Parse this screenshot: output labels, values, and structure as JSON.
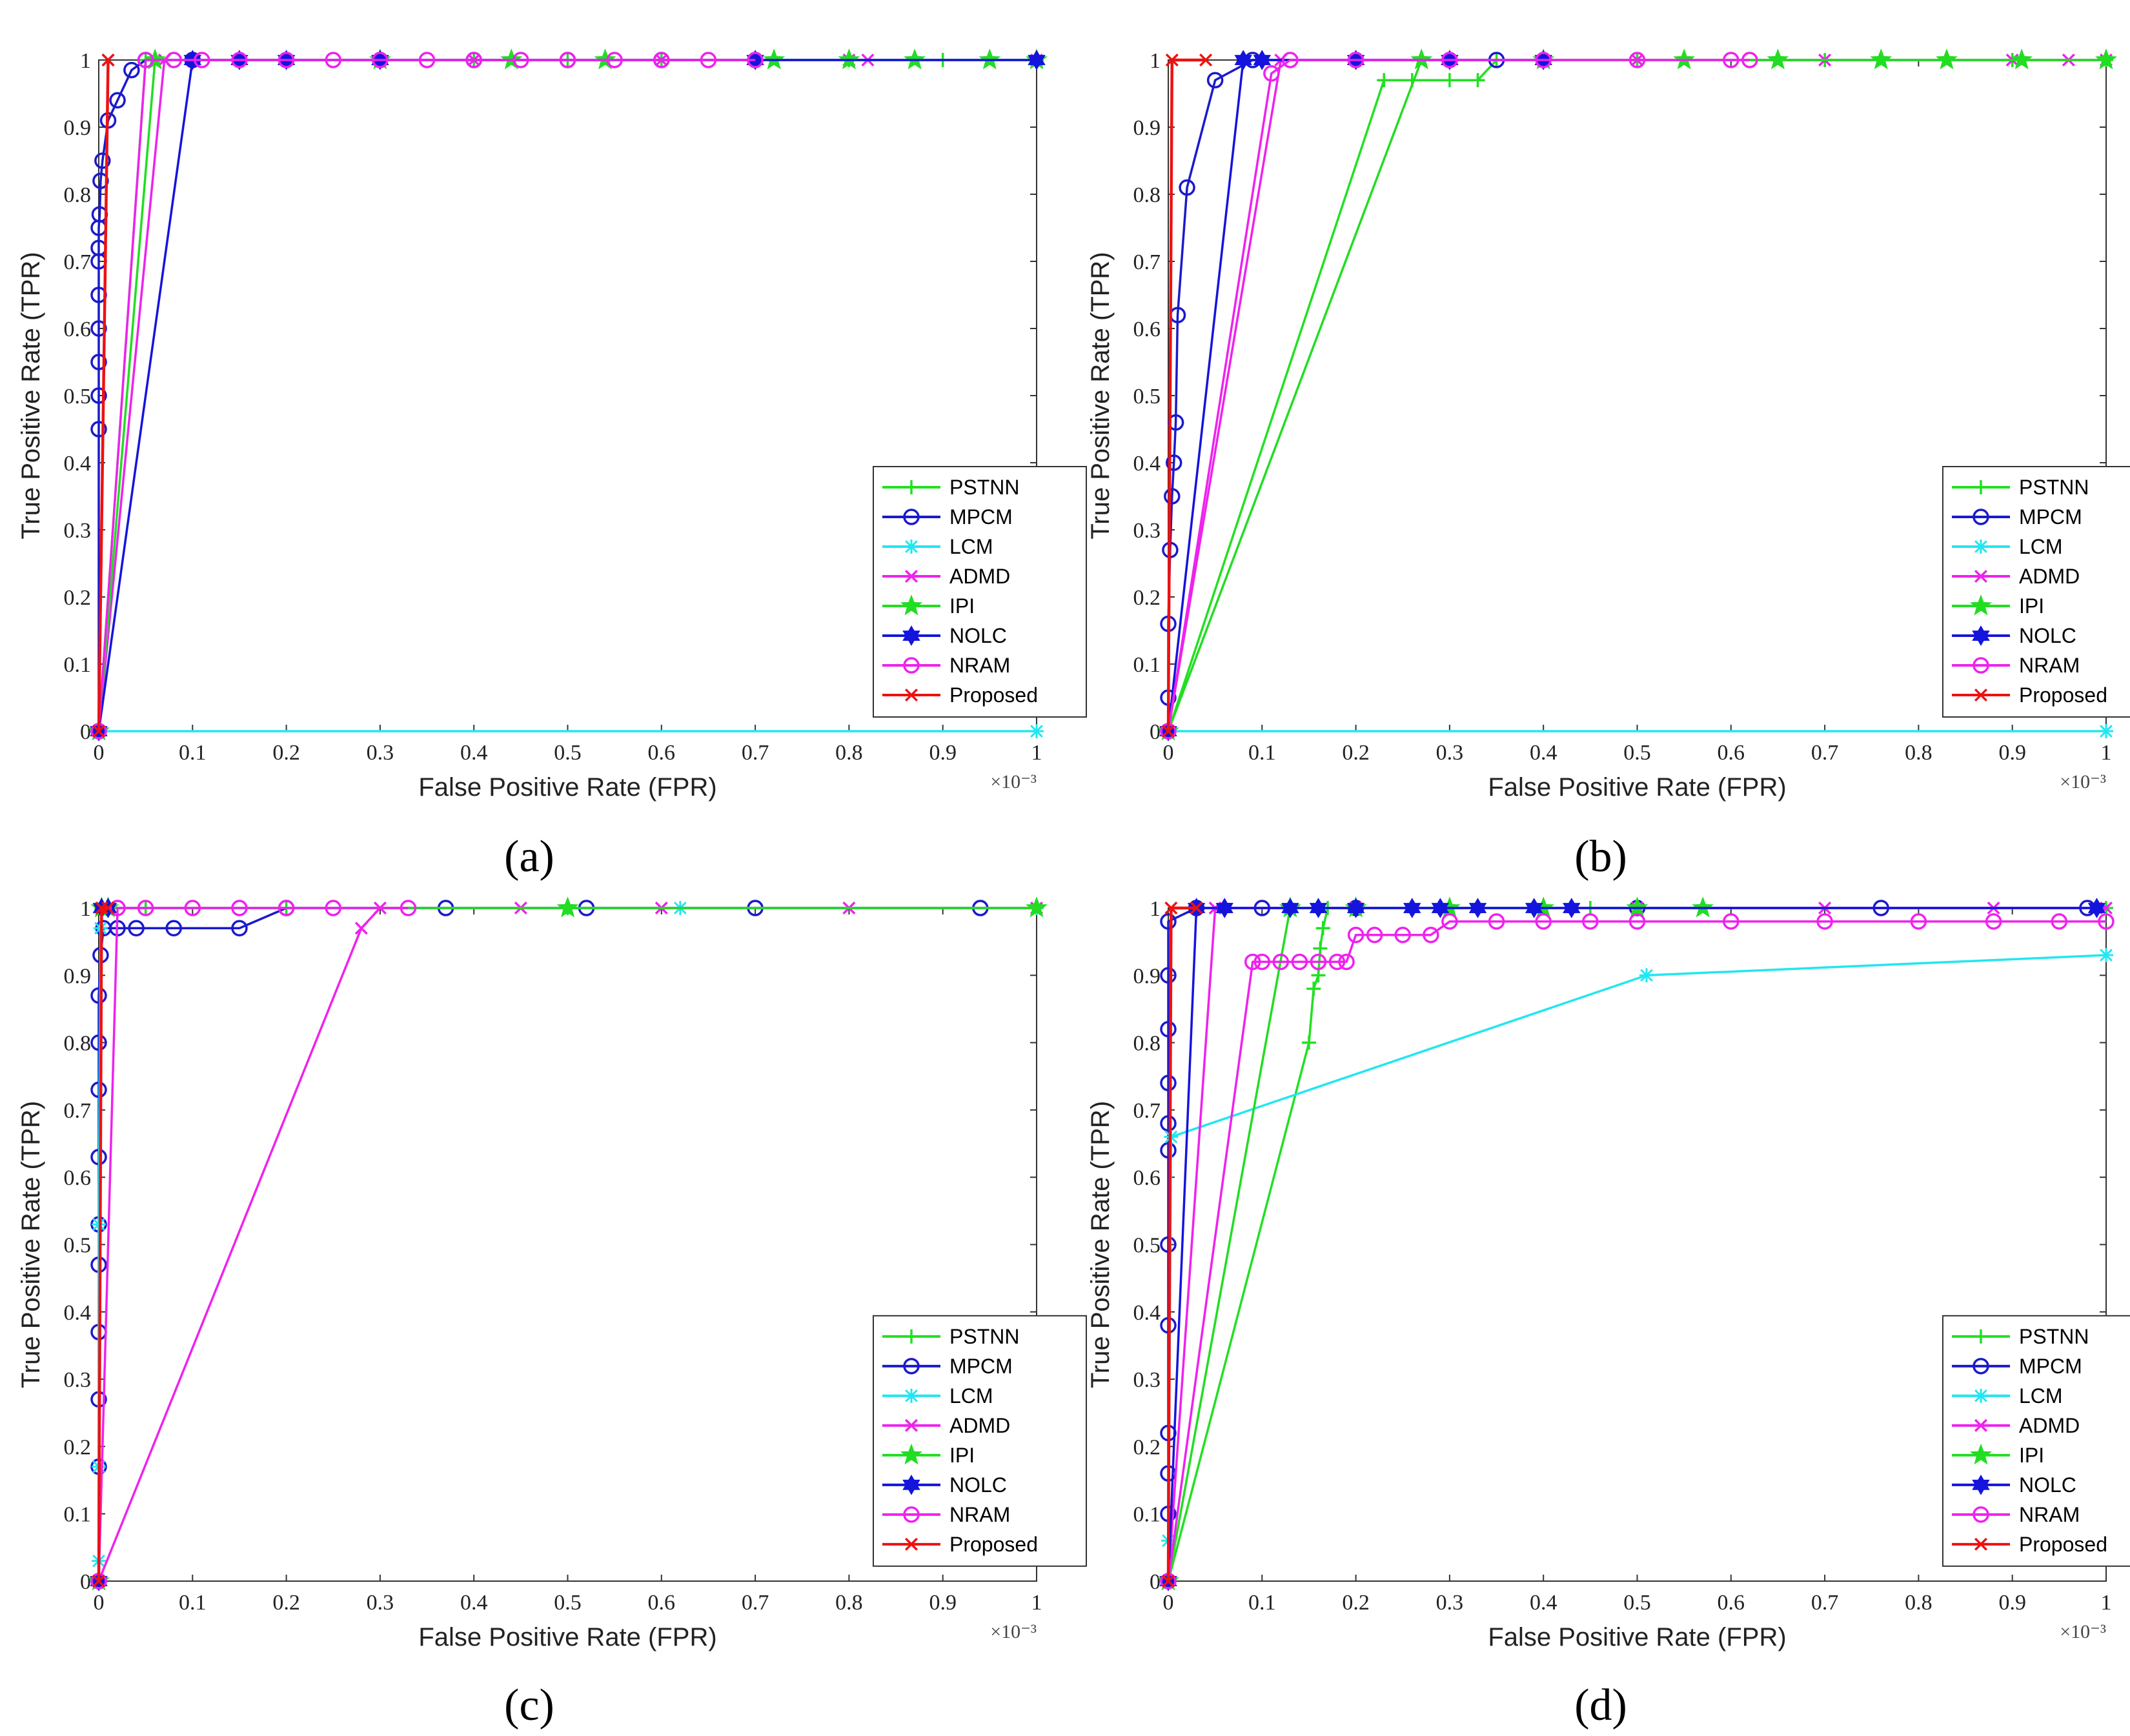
{
  "legend": [
    {
      "name": "PSTNN",
      "color": "#22e022",
      "marker": "plus"
    },
    {
      "name": "MPCM",
      "color": "#1a1acc",
      "marker": "circle"
    },
    {
      "name": "LCM",
      "color": "#22e6f0",
      "marker": "asterisk"
    },
    {
      "name": "ADMD",
      "color": "#ee22ee",
      "marker": "x"
    },
    {
      "name": "IPI",
      "color": "#22dd22",
      "marker": "star"
    },
    {
      "name": "NOLC",
      "color": "#1414dd",
      "marker": "hexagram"
    },
    {
      "name": "NRAM",
      "color": "#ee22ee",
      "marker": "circle"
    },
    {
      "name": "Proposed",
      "color": "#ee1111",
      "marker": "x"
    }
  ],
  "chart_data": [
    {
      "panel": "(a)",
      "type": "line",
      "xlabel": "False Positive Rate (FPR)",
      "ylabel": "True Positive Rate (TPR)",
      "x_multiplier": "×10⁻³",
      "xlim": [
        0,
        1
      ],
      "ylim": [
        0,
        1
      ],
      "xticks": [
        "0",
        "0.1",
        "0.2",
        "0.3",
        "0.4",
        "0.5",
        "0.6",
        "0.7",
        "0.8",
        "0.9",
        "1"
      ],
      "yticks": [
        "0",
        "0.1",
        "0.2",
        "0.3",
        "0.4",
        "0.5",
        "0.6",
        "0.7",
        "0.8",
        "0.9",
        "1"
      ],
      "series": [
        {
          "name": "PSTNN",
          "x": [
            0,
            0.05,
            0.1,
            0.2,
            0.3,
            0.4,
            0.5,
            0.6,
            0.7,
            0.8,
            0.9,
            1
          ],
          "y": [
            0,
            1,
            1,
            1,
            1,
            1,
            1,
            1,
            1,
            1,
            1,
            1
          ]
        },
        {
          "name": "MPCM",
          "x": [
            0,
            0,
            0,
            0,
            0,
            0,
            0,
            0,
            0,
            0.001,
            0.002,
            0.004,
            0.01,
            0.02,
            0.035,
            0.05,
            0.1,
            0.2,
            0.3,
            0.4,
            0.5,
            0.6,
            0.7
          ],
          "y": [
            0,
            0.45,
            0.5,
            0.55,
            0.6,
            0.65,
            0.7,
            0.72,
            0.75,
            0.77,
            0.82,
            0.85,
            0.91,
            0.94,
            0.985,
            1,
            1,
            1,
            1,
            1,
            1,
            1,
            1
          ]
        },
        {
          "name": "LCM",
          "x": [
            0,
            1
          ],
          "y": [
            0,
            0
          ]
        },
        {
          "name": "ADMD",
          "x": [
            0,
            0.07,
            0.2,
            0.4,
            0.6,
            0.8,
            0.82,
            1
          ],
          "y": [
            0,
            1,
            1,
            1,
            1,
            1,
            1,
            1
          ]
        },
        {
          "name": "IPI",
          "x": [
            0,
            0.06,
            0.3,
            0.44,
            0.54,
            0.72,
            0.8,
            0.87,
            0.95,
            1
          ],
          "y": [
            0,
            1,
            1,
            1,
            1,
            1,
            1,
            1,
            1,
            1
          ]
        },
        {
          "name": "NOLC",
          "x": [
            0,
            0.1,
            0.15,
            0.2,
            0.3,
            0.7,
            1
          ],
          "y": [
            0,
            1,
            1,
            1,
            1,
            1,
            1
          ]
        },
        {
          "name": "NRAM",
          "x": [
            0,
            0.05,
            0.08,
            0.11,
            0.15,
            0.2,
            0.25,
            0.3,
            0.35,
            0.4,
            0.45,
            0.5,
            0.55,
            0.6,
            0.65,
            0.7
          ],
          "y": [
            0,
            1,
            1,
            1,
            1,
            1,
            1,
            1,
            1,
            1,
            1,
            1,
            1,
            1,
            1,
            1
          ]
        },
        {
          "name": "Proposed",
          "x": [
            0,
            0.01,
            0.01
          ],
          "y": [
            0,
            1,
            1
          ]
        }
      ]
    },
    {
      "panel": "(b)",
      "type": "line",
      "xlabel": "False Positive Rate (FPR)",
      "ylabel": "True Positive Rate (TPR)",
      "x_multiplier": "×10⁻³",
      "xlim": [
        0,
        1
      ],
      "ylim": [
        0,
        1
      ],
      "xticks": [
        "0",
        "0.1",
        "0.2",
        "0.3",
        "0.4",
        "0.5",
        "0.6",
        "0.7",
        "0.8",
        "0.9",
        "1"
      ],
      "yticks": [
        "0",
        "0.1",
        "0.2",
        "0.3",
        "0.4",
        "0.5",
        "0.6",
        "0.7",
        "0.8",
        "0.9",
        "1"
      ],
      "series": [
        {
          "name": "PSTNN",
          "x": [
            0,
            0.23,
            0.26,
            0.3,
            0.33,
            0.35,
            0.5,
            0.7,
            0.9,
            1
          ],
          "y": [
            0,
            0.97,
            0.97,
            0.97,
            0.97,
            1,
            1,
            1,
            1,
            1
          ]
        },
        {
          "name": "MPCM",
          "x": [
            0,
            0,
            0,
            0.002,
            0.004,
            0.006,
            0.008,
            0.01,
            0.02,
            0.05,
            0.09,
            0.2,
            0.3,
            0.35
          ],
          "y": [
            0,
            0.05,
            0.16,
            0.27,
            0.35,
            0.4,
            0.46,
            0.62,
            0.81,
            0.97,
            1,
            1,
            1,
            1
          ]
        },
        {
          "name": "LCM",
          "x": [
            0,
            1
          ],
          "y": [
            0,
            0
          ]
        },
        {
          "name": "ADMD",
          "x": [
            0,
            0.12,
            0.3,
            0.5,
            0.7,
            0.9,
            0.96,
            1
          ],
          "y": [
            0,
            1,
            1,
            1,
            1,
            1,
            1,
            1
          ]
        },
        {
          "name": "IPI",
          "x": [
            0,
            0.27,
            0.4,
            0.55,
            0.65,
            0.76,
            0.83,
            0.91,
            1
          ],
          "y": [
            0,
            1,
            1,
            1,
            1,
            1,
            1,
            1,
            1
          ]
        },
        {
          "name": "NOLC",
          "x": [
            0,
            0.08,
            0.1,
            0.2,
            0.3,
            0.4
          ],
          "y": [
            0,
            1,
            1,
            1,
            1,
            1
          ]
        },
        {
          "name": "NRAM",
          "x": [
            0,
            0.11,
            0.13,
            0.2,
            0.3,
            0.4,
            0.5,
            0.6,
            0.62
          ],
          "y": [
            0,
            0.98,
            1,
            1,
            1,
            1,
            1,
            1,
            1
          ]
        },
        {
          "name": "Proposed",
          "x": [
            0,
            0.004,
            0.04
          ],
          "y": [
            0,
            1,
            1
          ]
        }
      ]
    },
    {
      "panel": "(c)",
      "type": "line",
      "xlabel": "False Positive Rate (FPR)",
      "ylabel": "True Positive Rate (TPR)",
      "x_multiplier": "×10⁻³",
      "xlim": [
        0,
        1
      ],
      "ylim": [
        0,
        1
      ],
      "xticks": [
        "0",
        "0.1",
        "0.2",
        "0.3",
        "0.4",
        "0.5",
        "0.6",
        "0.7",
        "0.8",
        "0.9",
        "1"
      ],
      "yticks": [
        "0",
        "0.1",
        "0.2",
        "0.3",
        "0.4",
        "0.5",
        "0.6",
        "0.7",
        "0.8",
        "0.9",
        "1"
      ],
      "series": [
        {
          "name": "PSTNN",
          "x": [
            0,
            0.003,
            0.05,
            0.2,
            0.5,
            1
          ],
          "y": [
            0,
            1,
            1,
            1,
            1,
            1
          ]
        },
        {
          "name": "MPCM",
          "x": [
            0,
            0,
            0,
            0,
            0,
            0,
            0,
            0,
            0,
            0,
            0.002,
            0.005,
            0.02,
            0.04,
            0.08,
            0.15,
            0.2,
            0.37,
            0.52,
            0.7,
            0.94
          ],
          "y": [
            0,
            0.17,
            0.27,
            0.37,
            0.47,
            0.53,
            0.63,
            0.73,
            0.8,
            0.87,
            0.93,
            0.97,
            0.97,
            0.97,
            0.97,
            0.97,
            1,
            1,
            1,
            1,
            1
          ]
        },
        {
          "name": "LCM",
          "x": [
            0,
            0,
            0,
            0.002,
            0.004,
            0.62,
            1
          ],
          "y": [
            0.03,
            0.17,
            0.53,
            0.97,
            1,
            1,
            1
          ]
        },
        {
          "name": "ADMD",
          "x": [
            0,
            0.28,
            0.3,
            0.45,
            0.6,
            0.8,
            1
          ],
          "y": [
            0,
            0.97,
            1,
            1,
            1,
            1,
            1
          ]
        },
        {
          "name": "IPI",
          "x": [
            0,
            0.003,
            0.01,
            0.5,
            1
          ],
          "y": [
            0,
            1,
            1,
            1,
            1
          ]
        },
        {
          "name": "NOLC",
          "x": [
            0,
            0.003,
            0.01
          ],
          "y": [
            0,
            1,
            1
          ]
        },
        {
          "name": "NRAM",
          "x": [
            0,
            0.02,
            0.05,
            0.1,
            0.15,
            0.2,
            0.25,
            0.33
          ],
          "y": [
            0,
            1,
            1,
            1,
            1,
            1,
            1,
            1
          ]
        },
        {
          "name": "Proposed",
          "x": [
            0,
            0.003,
            0.01
          ],
          "y": [
            0,
            1,
            1
          ]
        }
      ]
    },
    {
      "panel": "(d)",
      "type": "line",
      "xlabel": "False Positive Rate (FPR)",
      "ylabel": "True Positive Rate (TPR)",
      "x_multiplier": "×10⁻³",
      "xlim": [
        0,
        1
      ],
      "ylim": [
        0,
        1
      ],
      "xticks": [
        "0",
        "0.1",
        "0.2",
        "0.3",
        "0.4",
        "0.5",
        "0.6",
        "0.7",
        "0.8",
        "0.9",
        "1"
      ],
      "yticks": [
        "0",
        "0.1",
        "0.2",
        "0.3",
        "0.4",
        "0.5",
        "0.6",
        "0.7",
        "0.8",
        "0.9",
        "1"
      ],
      "series": [
        {
          "name": "PSTNN",
          "x": [
            0,
            0.15,
            0.155,
            0.16,
            0.162,
            0.165,
            0.17,
            0.2,
            0.3,
            0.45,
            1
          ],
          "y": [
            0,
            0.8,
            0.88,
            0.9,
            0.94,
            0.97,
            1,
            1,
            1,
            1,
            1
          ]
        },
        {
          "name": "MPCM",
          "x": [
            0,
            0,
            0,
            0,
            0,
            0,
            0,
            0,
            0,
            0,
            0,
            0,
            0.03,
            0.1,
            0.2,
            0.5,
            0.76,
            0.98
          ],
          "y": [
            0,
            0.1,
            0.16,
            0.22,
            0.38,
            0.5,
            0.64,
            0.68,
            0.74,
            0.82,
            0.9,
            0.98,
            1,
            1,
            1,
            1,
            1,
            1
          ]
        },
        {
          "name": "LCM",
          "x": [
            0,
            0.003,
            0.51,
            1
          ],
          "y": [
            0.06,
            0.66,
            0.9,
            0.93
          ]
        },
        {
          "name": "ADMD",
          "x": [
            0,
            0.05,
            0.2,
            0.5,
            0.7,
            0.88,
            1
          ],
          "y": [
            0,
            1,
            1,
            1,
            1,
            1,
            1
          ]
        },
        {
          "name": "IPI",
          "x": [
            0,
            0.13,
            0.2,
            0.3,
            0.4,
            0.5,
            0.57
          ],
          "y": [
            0,
            1,
            1,
            1,
            1,
            1,
            1
          ]
        },
        {
          "name": "NOLC",
          "x": [
            0,
            0.03,
            0.06,
            0.13,
            0.16,
            0.2,
            0.26,
            0.29,
            0.33,
            0.39,
            0.43,
            0.99
          ],
          "y": [
            0,
            1,
            1,
            1,
            1,
            1,
            1,
            1,
            1,
            1,
            1,
            1
          ]
        },
        {
          "name": "NRAM",
          "x": [
            0,
            0.09,
            0.1,
            0.12,
            0.14,
            0.16,
            0.18,
            0.19,
            0.2,
            0.22,
            0.25,
            0.28,
            0.3,
            0.35,
            0.4,
            0.45,
            0.5,
            0.6,
            0.7,
            0.8,
            0.88,
            0.95,
            1
          ],
          "y": [
            0,
            0.92,
            0.92,
            0.92,
            0.92,
            0.92,
            0.92,
            0.92,
            0.96,
            0.96,
            0.96,
            0.96,
            0.98,
            0.98,
            0.98,
            0.98,
            0.98,
            0.98,
            0.98,
            0.98,
            0.98,
            0.98,
            0.98
          ]
        },
        {
          "name": "Proposed",
          "x": [
            0,
            0.003,
            0.03
          ],
          "y": [
            0,
            1,
            1
          ]
        }
      ]
    }
  ]
}
